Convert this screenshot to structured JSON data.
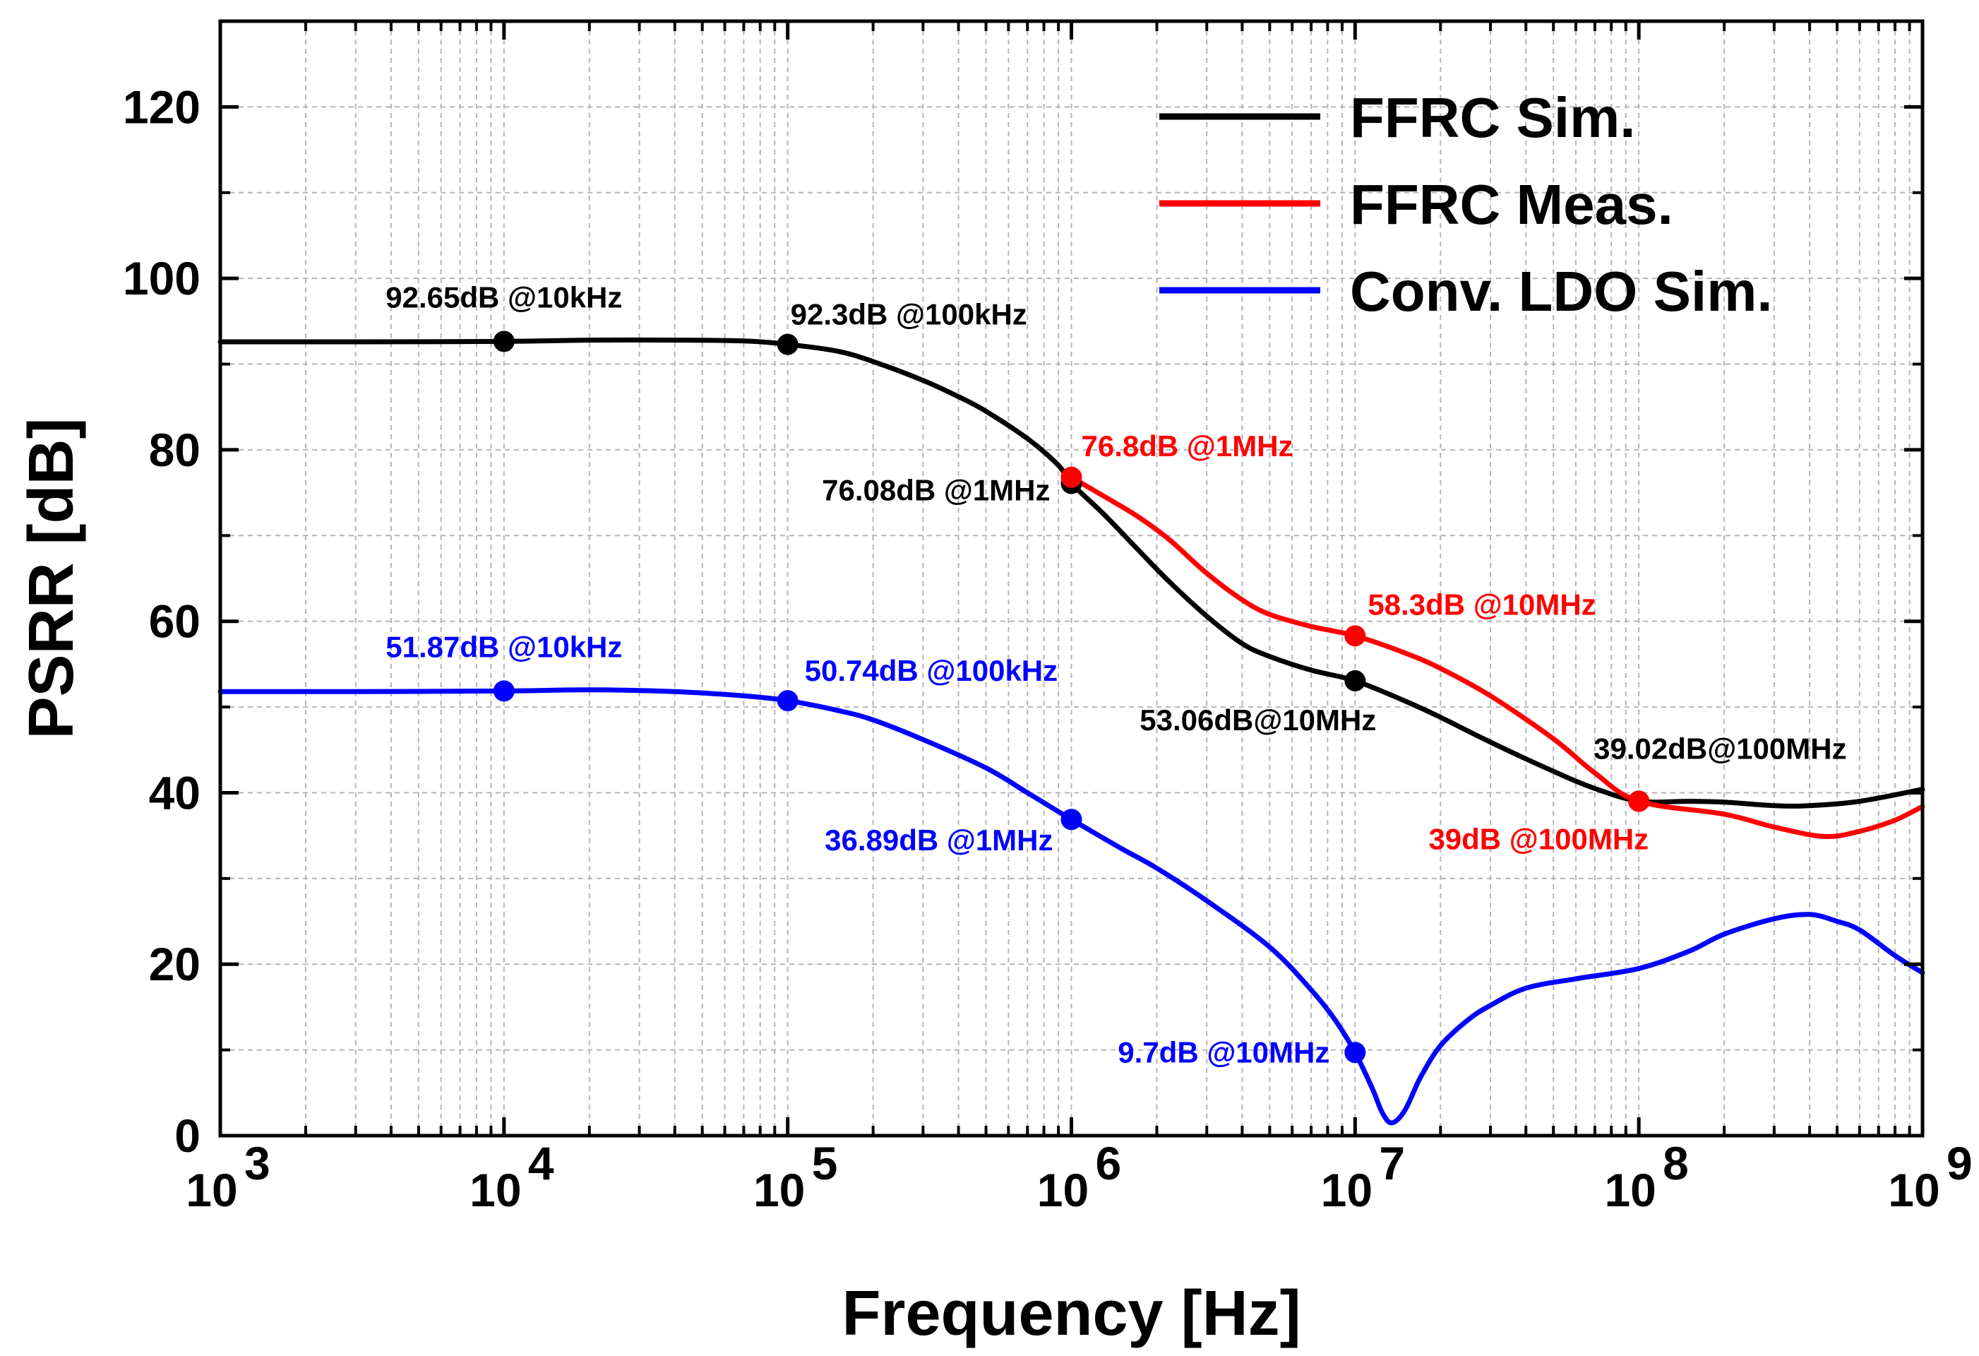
{
  "chart_data": {
    "type": "line",
    "title": "",
    "xlabel": "Frequency [Hz]",
    "ylabel": "PSRR [dB]",
    "xscale": "log",
    "xlim": [
      1000,
      1000000000
    ],
    "ylim": [
      0,
      130
    ],
    "x_ticks": [
      {
        "value": 1000,
        "base": "10",
        "exp": "3"
      },
      {
        "value": 10000,
        "base": "10",
        "exp": "4"
      },
      {
        "value": 100000,
        "base": "10",
        "exp": "5"
      },
      {
        "value": 1000000,
        "base": "10",
        "exp": "6"
      },
      {
        "value": 10000000,
        "base": "10",
        "exp": "7"
      },
      {
        "value": 100000000,
        "base": "10",
        "exp": "8"
      },
      {
        "value": 1000000000,
        "base": "10",
        "exp": "9"
      }
    ],
    "y_ticks": [
      0,
      20,
      40,
      60,
      80,
      100,
      120
    ],
    "grid": true,
    "legend_position": "top-right",
    "series": [
      {
        "name": "FFRC Sim.",
        "color": "#000000",
        "points": [
          [
            1000,
            92.6
          ],
          [
            3000,
            92.6
          ],
          [
            10000,
            92.65
          ],
          [
            20000,
            92.8
          ],
          [
            40000,
            92.8
          ],
          [
            70000,
            92.7
          ],
          [
            100000,
            92.3
          ],
          [
            150000,
            91.5
          ],
          [
            200000,
            90.3
          ],
          [
            300000,
            88.1
          ],
          [
            400000,
            86.2
          ],
          [
            500000,
            84.5
          ],
          [
            700000,
            81.3
          ],
          [
            900000,
            78.2
          ],
          [
            1000000,
            76.08
          ],
          [
            1300000,
            72.5
          ],
          [
            1700000,
            68.5
          ],
          [
            2200000,
            64.7
          ],
          [
            3000000,
            60.6
          ],
          [
            4000000,
            57.4
          ],
          [
            5000000,
            55.9
          ],
          [
            7000000,
            54.3
          ],
          [
            10000000,
            53.06
          ],
          [
            15000000,
            50.7
          ],
          [
            20000000,
            48.8
          ],
          [
            30000000,
            45.9
          ],
          [
            50000000,
            42.5
          ],
          [
            70000000,
            40.5
          ],
          [
            100000000,
            39.02
          ],
          [
            150000000,
            39.0
          ],
          [
            200000000,
            38.9
          ],
          [
            300000000,
            38.5
          ],
          [
            400000000,
            38.5
          ],
          [
            600000000,
            39.0
          ],
          [
            1000000000,
            40.4
          ]
        ]
      },
      {
        "name": "FFRC Meas.",
        "color": "#ff0000",
        "points": [
          [
            1000000,
            76.8
          ],
          [
            1300000,
            74.6
          ],
          [
            1700000,
            72.3
          ],
          [
            2200000,
            69.6
          ],
          [
            3000000,
            65.6
          ],
          [
            4000000,
            62.5
          ],
          [
            5000000,
            60.8
          ],
          [
            7000000,
            59.4
          ],
          [
            10000000,
            58.3
          ],
          [
            15000000,
            56.3
          ],
          [
            20000000,
            54.5
          ],
          [
            30000000,
            51.3
          ],
          [
            50000000,
            46.3
          ],
          [
            70000000,
            42.3
          ],
          [
            100000000,
            39.0
          ],
          [
            200000000,
            37.5
          ],
          [
            300000000,
            36.0
          ],
          [
            450000000,
            34.9
          ],
          [
            600000000,
            35.5
          ],
          [
            800000000,
            36.8
          ],
          [
            1000000000,
            38.4
          ]
        ]
      },
      {
        "name": "Conv. LDO Sim.",
        "color": "#0000ff",
        "points": [
          [
            1000,
            51.8
          ],
          [
            3000,
            51.8
          ],
          [
            10000,
            51.87
          ],
          [
            20000,
            52.0
          ],
          [
            40000,
            51.8
          ],
          [
            70000,
            51.3
          ],
          [
            100000,
            50.74
          ],
          [
            150000,
            49.6
          ],
          [
            200000,
            48.5
          ],
          [
            300000,
            46.2
          ],
          [
            500000,
            42.9
          ],
          [
            700000,
            40.0
          ],
          [
            1000000,
            36.89
          ],
          [
            1500000,
            33.5
          ],
          [
            2000000,
            31.2
          ],
          [
            3000000,
            27.4
          ],
          [
            5000000,
            22.0
          ],
          [
            7000000,
            17.0
          ],
          [
            8500000,
            13.5
          ],
          [
            10000000,
            9.7
          ],
          [
            11500000,
            5.5
          ],
          [
            12500000,
            2.6
          ],
          [
            13500000,
            1.5
          ],
          [
            15000000,
            3.0
          ],
          [
            17000000,
            6.8
          ],
          [
            20000000,
            10.5
          ],
          [
            25000000,
            13.5
          ],
          [
            30000000,
            15.2
          ],
          [
            40000000,
            17.2
          ],
          [
            60000000,
            18.3
          ],
          [
            100000000,
            19.5
          ],
          [
            150000000,
            21.5
          ],
          [
            200000000,
            23.5
          ],
          [
            300000000,
            25.3
          ],
          [
            400000000,
            25.8
          ],
          [
            500000000,
            25.0
          ],
          [
            600000000,
            24.0
          ],
          [
            800000000,
            21.0
          ],
          [
            1000000000,
            19.0
          ]
        ]
      }
    ],
    "markers": [
      {
        "series": 0,
        "x": 10000,
        "y": 92.65
      },
      {
        "series": 0,
        "x": 100000,
        "y": 92.3
      },
      {
        "series": 0,
        "x": 1000000,
        "y": 76.08
      },
      {
        "series": 0,
        "x": 10000000,
        "y": 53.06
      },
      {
        "series": 0,
        "x": 100000000,
        "y": 39.02
      },
      {
        "series": 1,
        "x": 1000000,
        "y": 76.8
      },
      {
        "series": 1,
        "x": 10000000,
        "y": 58.3
      },
      {
        "series": 1,
        "x": 100000000,
        "y": 39.0
      },
      {
        "series": 2,
        "x": 10000,
        "y": 51.87
      },
      {
        "series": 2,
        "x": 100000,
        "y": 50.74
      },
      {
        "series": 2,
        "x": 1000000,
        "y": 36.89
      },
      {
        "series": 2,
        "x": 10000000,
        "y": 9.7
      }
    ],
    "annotations": [
      {
        "text": "92.65dB @10kHz",
        "color": "#000000",
        "x": 10000,
        "y": 92.65,
        "anchor": "middle",
        "dx": 0,
        "dy": -48
      },
      {
        "text": "92.3dB @100kHz",
        "color": "#000000",
        "x": 100000,
        "y": 92.3,
        "anchor": "start",
        "dx": 4,
        "dy": -28
      },
      {
        "text": "76.08dB @1MHz",
        "color": "#000000",
        "x": 1000000,
        "y": 76.08,
        "anchor": "end",
        "dx": -30,
        "dy": 24
      },
      {
        "text": "53.06dB@10MHz",
        "color": "#000000",
        "x": 10000000,
        "y": 53.06,
        "anchor": "end",
        "dx": 30,
        "dy": 70
      },
      {
        "text": "39.02dB@100MHz",
        "color": "#000000",
        "x": 100000000,
        "y": 39.02,
        "anchor": "start",
        "dx": -64,
        "dy": -60
      },
      {
        "text": "76.8dB @1MHz",
        "color": "#ff0000",
        "x": 1000000,
        "y": 76.8,
        "anchor": "start",
        "dx": 14,
        "dy": -30
      },
      {
        "text": "58.3dB @10MHz",
        "color": "#ff0000",
        "x": 10000000,
        "y": 58.3,
        "anchor": "start",
        "dx": 18,
        "dy": -30
      },
      {
        "text": "39dB @100MHz",
        "color": "#ff0000",
        "x": 100000000,
        "y": 39.0,
        "anchor": "end",
        "dx": 14,
        "dy": 68
      },
      {
        "text": "51.87dB @10kHz",
        "color": "#0000ff",
        "x": 10000,
        "y": 51.87,
        "anchor": "middle",
        "dx": 0,
        "dy": -48
      },
      {
        "text": "50.74dB @100kHz",
        "color": "#0000ff",
        "x": 100000,
        "y": 50.74,
        "anchor": "start",
        "dx": 24,
        "dy": -28
      },
      {
        "text": "36.89dB @1MHz",
        "color": "#0000ff",
        "x": 1000000,
        "y": 36.89,
        "anchor": "end",
        "dx": -26,
        "dy": 44
      },
      {
        "text": "9.7dB @10MHz",
        "color": "#0000ff",
        "x": 10000000,
        "y": 9.7,
        "anchor": "end",
        "dx": -36,
        "dy": 14
      }
    ]
  }
}
